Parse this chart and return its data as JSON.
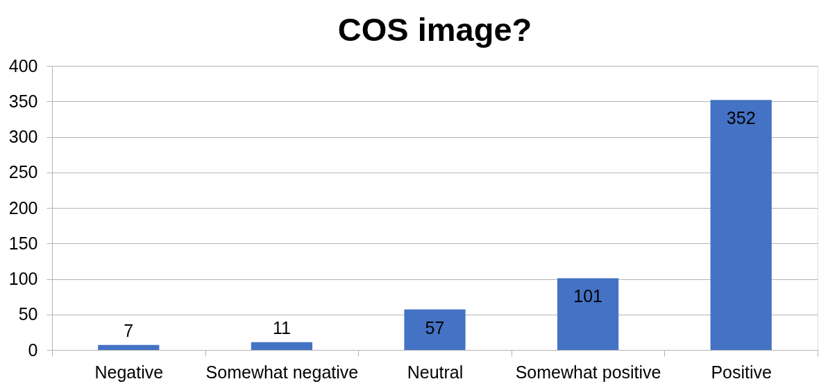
{
  "chart_data": {
    "type": "bar",
    "title": "COS image?",
    "categories": [
      "Negative",
      "Somewhat negative",
      "Neutral",
      "Somewhat positive",
      "Positive"
    ],
    "values": [
      7,
      11,
      57,
      101,
      352
    ],
    "color": "#4472c4",
    "ylim": [
      0,
      400
    ],
    "yticks": [
      0,
      50,
      100,
      150,
      200,
      250,
      300,
      350,
      400
    ],
    "grid": "y",
    "data_labels": true
  }
}
